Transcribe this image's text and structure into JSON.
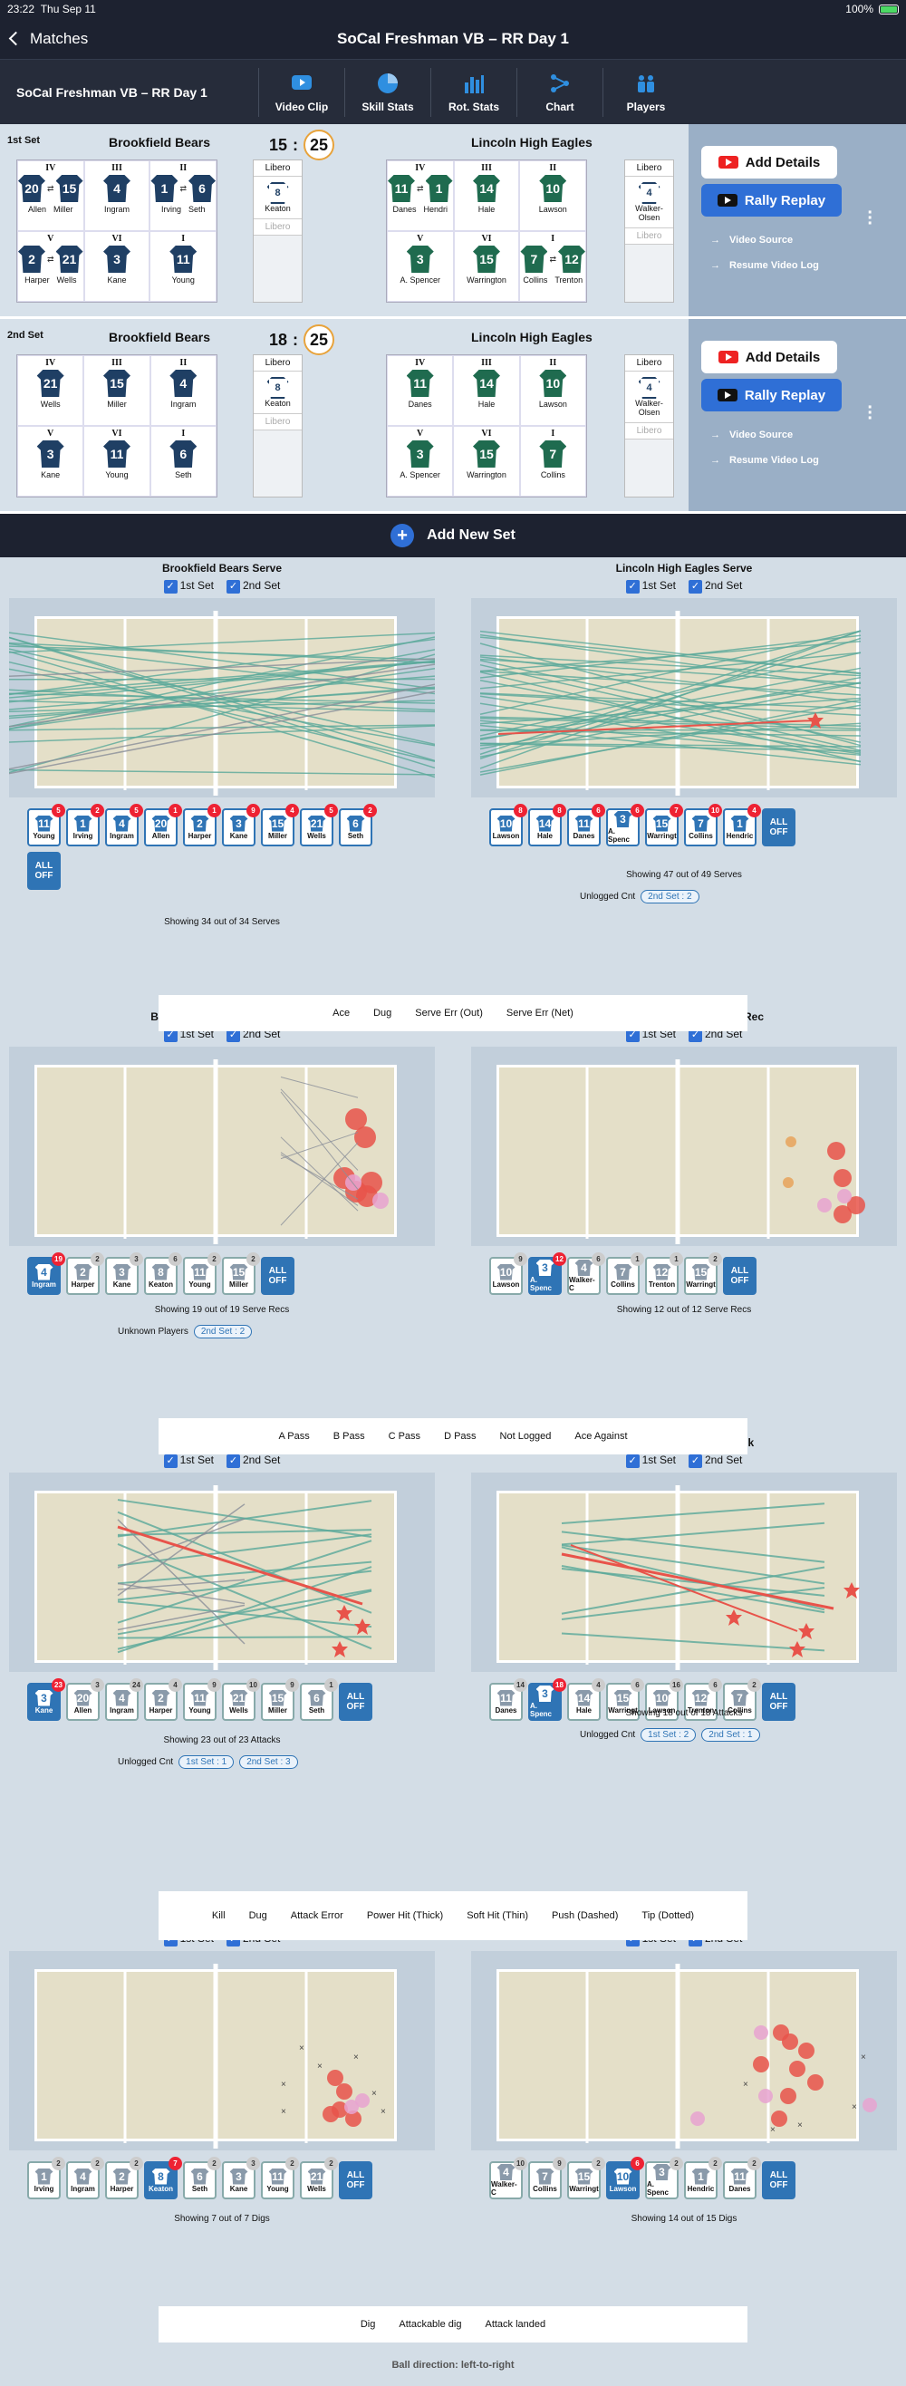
{
  "status": {
    "time": "23:22",
    "date": "Thu Sep 11",
    "battery": "100%"
  },
  "nav": {
    "back": "Matches",
    "title": "SoCal Freshman VB – RR Day 1"
  },
  "toolbar": {
    "match": "SoCal Freshman VB – RR Day 1",
    "items": [
      "Video Clip",
      "Skill Stats",
      "Rot. Stats",
      "Chart",
      "Players"
    ]
  },
  "sets": [
    {
      "label": "1st Set",
      "home": "Brookfield Bears",
      "away": "Lincoln High Eagles",
      "home_score": "15",
      "away_score": "25",
      "home_court": [
        {
          "r": "IV",
          "j": "20",
          "j2": "15",
          "n": "Allen",
          "n2": "Miller"
        },
        {
          "r": "III",
          "j": "4",
          "n": "Ingram"
        },
        {
          "r": "II",
          "j": "1",
          "j2": "6",
          "n": "Irving",
          "n2": "Seth"
        },
        {
          "r": "V",
          "j": "2",
          "j2": "21",
          "n": "Harper",
          "n2": "Wells"
        },
        {
          "r": "VI",
          "j": "3",
          "n": "Kane"
        },
        {
          "r": "I",
          "j": "11",
          "n": "Young"
        }
      ],
      "home_libero": {
        "j": "8",
        "n": "Keaton"
      },
      "away_court": [
        {
          "r": "IV",
          "j": "11",
          "j2": "1",
          "n": "Danes",
          "n2": "Hendri"
        },
        {
          "r": "III",
          "j": "14",
          "n": "Hale"
        },
        {
          "r": "II",
          "j": "10",
          "n": "Lawson"
        },
        {
          "r": "V",
          "j": "3",
          "n": "A. Spencer"
        },
        {
          "r": "VI",
          "j": "15",
          "n": "Warrington"
        },
        {
          "r": "I",
          "j": "7",
          "j2": "12",
          "n": "Collins",
          "n2": "Trenton"
        }
      ],
      "away_libero": {
        "j": "4",
        "n": "Walker-Olsen"
      }
    },
    {
      "label": "2nd Set",
      "home": "Brookfield Bears",
      "away": "Lincoln High Eagles",
      "home_score": "18",
      "away_score": "25",
      "home_court": [
        {
          "r": "IV",
          "j": "21",
          "n": "Wells"
        },
        {
          "r": "III",
          "j": "15",
          "n": "Miller"
        },
        {
          "r": "II",
          "j": "4",
          "n": "Ingram"
        },
        {
          "r": "V",
          "j": "3",
          "n": "Kane"
        },
        {
          "r": "VI",
          "j": "11",
          "n": "Young"
        },
        {
          "r": "I",
          "j": "6",
          "n": "Seth"
        }
      ],
      "home_libero": {
        "j": "8",
        "n": "Keaton"
      },
      "away_court": [
        {
          "r": "IV",
          "j": "11",
          "n": "Danes"
        },
        {
          "r": "III",
          "j": "14",
          "n": "Hale"
        },
        {
          "r": "II",
          "j": "10",
          "n": "Lawson"
        },
        {
          "r": "V",
          "j": "3",
          "n": "A. Spencer"
        },
        {
          "r": "VI",
          "j": "15",
          "n": "Warrington"
        },
        {
          "r": "I",
          "j": "7",
          "n": "Collins"
        }
      ],
      "away_libero": {
        "j": "4",
        "n": "Walker-Olsen"
      }
    }
  ],
  "libero_label": "Libero",
  "side": {
    "details": "Add Details",
    "replay": "Rally Replay",
    "source": "Video Source",
    "resume": "Resume Video Log"
  },
  "add_set": "Add New Set",
  "check": {
    "s1": "1st Set",
    "s2": "2nd Set"
  },
  "panels": {
    "bserve": {
      "title": "Brookfield Bears Serve",
      "showing": "Showing 34 out of 34 Serves",
      "players": [
        [
          "11",
          "Young",
          "5"
        ],
        [
          "1",
          "Irving",
          "2"
        ],
        [
          "4",
          "Ingram",
          "5"
        ],
        [
          "20",
          "Allen",
          "1"
        ],
        [
          "2",
          "Harper",
          "1"
        ],
        [
          "3",
          "Kane",
          "9"
        ],
        [
          "15",
          "Miller",
          "4"
        ],
        [
          "21",
          "Wells",
          "5"
        ],
        [
          "6",
          "Seth",
          "2"
        ]
      ]
    },
    "lserve": {
      "title": "Lincoln High Eagles Serve",
      "showing": "Showing 47 out of 49 Serves",
      "unlogged": "Unlogged Cnt",
      "pill": "2nd Set : 2",
      "players": [
        [
          "10",
          "Lawson",
          "8"
        ],
        [
          "14",
          "Hale",
          "8"
        ],
        [
          "11",
          "Danes",
          "6"
        ],
        [
          "3",
          "A. Spenc",
          "6"
        ],
        [
          "15",
          "Warringt",
          "7"
        ],
        [
          "7",
          "Collins",
          "10"
        ],
        [
          "1",
          "Hendric",
          "4"
        ]
      ]
    },
    "brec": {
      "title": "Brookfield Bears Serve Rec",
      "showing": "Showing 19 out of 19 Serve Recs",
      "unknown": "Unknown Players",
      "pill": "2nd Set : 2",
      "players": [
        [
          "4",
          "Ingram",
          "19"
        ],
        [
          "2",
          "Harper",
          "2"
        ],
        [
          "3",
          "Kane",
          "3"
        ],
        [
          "8",
          "Keaton",
          "6"
        ],
        [
          "11",
          "Young",
          "2"
        ],
        [
          "15",
          "Miller",
          "2"
        ]
      ]
    },
    "lrec": {
      "title": "Lincoln High Eagles Serve Rec",
      "showing": "Showing 12 out of 12 Serve Recs",
      "players": [
        [
          "10",
          "Lawson",
          "9"
        ],
        [
          "3",
          "A. Spenc",
          "12"
        ],
        [
          "4",
          "Walker-C",
          "6"
        ],
        [
          "7",
          "Collins",
          "1"
        ],
        [
          "12",
          "Trenton",
          "1"
        ],
        [
          "15",
          "Warringt",
          "2"
        ]
      ]
    },
    "batt": {
      "title": "Brookfield Bears Attack",
      "showing": "Showing 23 out of 23 Attacks",
      "unlogged": "Unlogged Cnt",
      "pill1": "1st Set : 1",
      "pill2": "2nd Set : 3",
      "players": [
        [
          "3",
          "Kane",
          "23"
        ],
        [
          "20",
          "Allen",
          "3"
        ],
        [
          "4",
          "Ingram",
          "24"
        ],
        [
          "2",
          "Harper",
          "4"
        ],
        [
          "11",
          "Young",
          "9"
        ],
        [
          "21",
          "Wells",
          "10"
        ],
        [
          "15",
          "Miller",
          "9"
        ],
        [
          "6",
          "Seth",
          "1"
        ]
      ]
    },
    "latt": {
      "title": "Lincoln High Eagles Attack",
      "showing": "Showing 18 out of 18 Attacks",
      "unlogged": "Unlogged Cnt",
      "pill1": "1st Set : 2",
      "pill2": "2nd Set : 1",
      "players": [
        [
          "11",
          "Danes",
          "14"
        ],
        [
          "3",
          "A. Spenc",
          "18"
        ],
        [
          "14",
          "Hale",
          "4"
        ],
        [
          "15",
          "Warringt",
          "6"
        ],
        [
          "10",
          "Lawson",
          "16"
        ],
        [
          "12",
          "Trenton",
          "6"
        ],
        [
          "7",
          "Collins",
          "2"
        ]
      ]
    },
    "bdig": {
      "title": "Brookfield Bears Dig",
      "showing": "Showing 7 out of 7 Digs",
      "players": [
        [
          "1",
          "Irving",
          "2"
        ],
        [
          "4",
          "Ingram",
          "2"
        ],
        [
          "2",
          "Harper",
          "2"
        ],
        [
          "8",
          "Keaton",
          "7"
        ],
        [
          "6",
          "Seth",
          "2"
        ],
        [
          "3",
          "Kane",
          "3"
        ],
        [
          "11",
          "Young",
          "2"
        ],
        [
          "21",
          "Wells",
          "2"
        ]
      ]
    },
    "ldig": {
      "title": "Lincoln High Eagles Dig",
      "showing": "Showing 14 out of 15 Digs",
      "players": [
        [
          "4",
          "Walker-C",
          "10"
        ],
        [
          "7",
          "Collins",
          "9"
        ],
        [
          "15",
          "Warringt",
          "2"
        ],
        [
          "10",
          "Lawson",
          "6"
        ],
        [
          "3",
          "A. Spenc",
          "2"
        ],
        [
          "1",
          "Hendric",
          "2"
        ],
        [
          "11",
          "Danes",
          "2"
        ]
      ]
    }
  },
  "all_off": "ALL OFF",
  "legends": {
    "serve": [
      "Ace",
      "Dug",
      "Serve Err (Out)",
      "Serve Err (Net)"
    ],
    "rec": [
      "A Pass",
      "B Pass",
      "C Pass",
      "D Pass",
      "Not Logged",
      "Ace Against"
    ],
    "attack": [
      "Kill",
      "Dug",
      "Attack Error",
      "Power Hit (Thick)",
      "Soft Hit (Thin)",
      "Push (Dashed)",
      "Tip (Dotted)"
    ],
    "dig": [
      "Dig",
      "Attackable dig",
      "Attack landed"
    ]
  },
  "footer": "Ball direction: left-to-right",
  "colors": {
    "accent": "#2f74b5",
    "kill": "#e8534a",
    "dug": "#5aa99a",
    "error": "#8a8f99"
  }
}
